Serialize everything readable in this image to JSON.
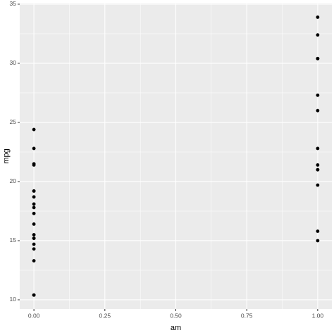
{
  "chart_data": {
    "type": "scatter",
    "x_label": "am",
    "y_label": "mpg",
    "x": [
      0,
      0,
      0,
      0,
      0,
      0,
      0,
      0,
      0,
      0,
      0,
      0,
      0,
      0,
      0,
      0,
      0,
      0,
      0,
      1,
      1,
      1,
      1,
      1,
      1,
      1,
      1,
      1,
      1,
      1,
      1,
      1
    ],
    "values": [
      21.4,
      18.7,
      18.1,
      14.3,
      24.4,
      22.8,
      19.2,
      17.8,
      16.4,
      17.3,
      15.2,
      10.4,
      10.4,
      14.7,
      21.5,
      15.5,
      15.2,
      13.3,
      19.2,
      21.0,
      21.0,
      22.8,
      32.4,
      30.4,
      33.9,
      27.3,
      26.0,
      30.4,
      15.8,
      19.7,
      15.0,
      21.4
    ],
    "color": "#000000",
    "xlim": [
      -0.05,
      1.05
    ],
    "xticks": [
      {
        "value": 0,
        "label": "0.00"
      },
      {
        "value": 0.25,
        "label": "0.25"
      },
      {
        "value": 0.5,
        "label": "0.50"
      },
      {
        "value": 0.75,
        "label": "0.75"
      },
      {
        "value": 1,
        "label": "1.00"
      }
    ],
    "ylim": [
      9.225,
      35.075
    ],
    "yticks": [
      10,
      15,
      20,
      25,
      30,
      35
    ],
    "grid": true
  }
}
